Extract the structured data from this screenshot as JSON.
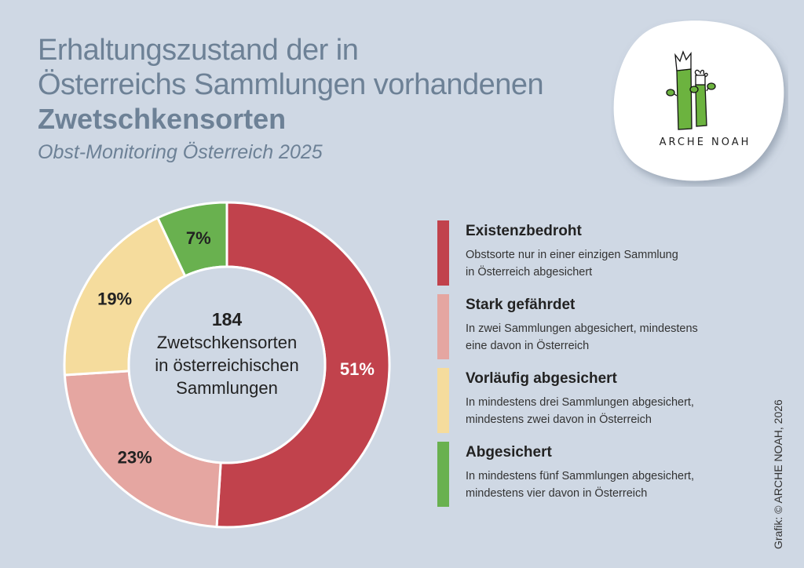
{
  "header": {
    "title_line1": "Erhaltungszustand der in",
    "title_line2": "Österreichs Sammlungen vorhandenen",
    "title_line3": "Zwetschkensorten",
    "subtitle": "Obst-Monitoring Österreich 2025"
  },
  "logo": {
    "text": "ARCHE NOAH",
    "icon": "plant-stalks-logo"
  },
  "credit": "Grafik: © ARCHE NOAH, 2026",
  "chart_data": {
    "type": "pie",
    "donut": true,
    "title": "Erhaltungszustand der in Österreichs Sammlungen vorhandenen Zwetschkensorten",
    "subtitle": "Obst-Monitoring Österreich 2025",
    "center": {
      "value": "184",
      "label_lines": [
        "Zwetschkensorten",
        "in österreichischen",
        "Sammlungen"
      ]
    },
    "slices": [
      {
        "name": "Existenzbedroht",
        "value": 51,
        "label": "51%",
        "color": "#c1424c",
        "label_color": "#ffffff"
      },
      {
        "name": "Stark gefährdet",
        "value": 23,
        "label": "23%",
        "color": "#e5a6a1",
        "label_color": "#222222"
      },
      {
        "name": "Vorläufig abgesichert",
        "value": 19,
        "label": "19%",
        "color": "#f5dc9d",
        "label_color": "#222222"
      },
      {
        "name": "Abgesichert",
        "value": 7,
        "label": "7%",
        "color": "#69b14f",
        "label_color": "#222222"
      }
    ],
    "legend_position": "right"
  },
  "legend": [
    {
      "title": "Existenzbedroht",
      "desc1": "Obstsorte nur in einer einzigen Sammlung",
      "desc2": "in Österreich abgesichert",
      "color": "#c1424c"
    },
    {
      "title": "Stark gefährdet",
      "desc1": "In zwei Sammlungen abgesichert, mindestens",
      "desc2": "eine davon in Österreich",
      "color": "#e5a6a1"
    },
    {
      "title": "Vorläufig abgesichert",
      "desc1": "In mindestens drei Sammlungen abgesichert,",
      "desc2": "mindestens zwei davon in Österreich",
      "color": "#f5dc9d"
    },
    {
      "title": "Abgesichert",
      "desc1": "In mindestens fünf Sammlungen abgesichert,",
      "desc2": "mindestens vier davon in Österreich",
      "color": "#69b14f"
    }
  ]
}
